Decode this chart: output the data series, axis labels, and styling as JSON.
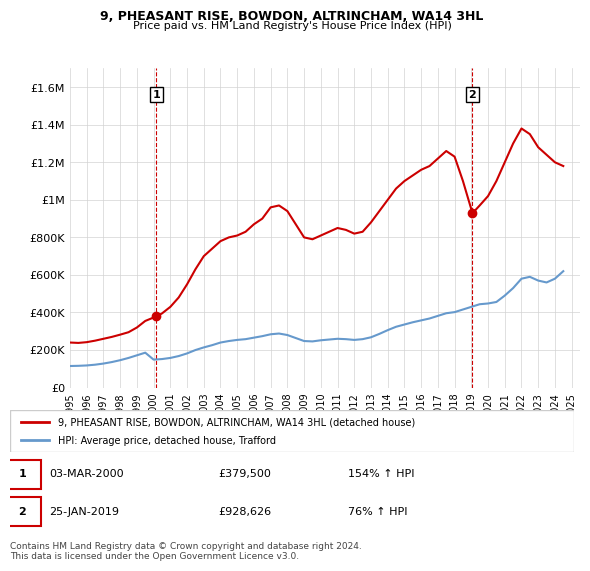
{
  "title": "9, PHEASANT RISE, BOWDON, ALTRINCHAM, WA14 3HL",
  "subtitle": "Price paid vs. HM Land Registry's House Price Index (HPI)",
  "ylabel_ticks": [
    "£0",
    "£200K",
    "£400K",
    "£600K",
    "£800K",
    "£1M",
    "£1.2M",
    "£1.4M",
    "£1.6M"
  ],
  "ytick_values": [
    0,
    200000,
    400000,
    600000,
    800000,
    1000000,
    1200000,
    1400000,
    1600000
  ],
  "ylim": [
    0,
    1700000
  ],
  "xlim_start": 1995.0,
  "xlim_end": 2025.5,
  "house_color": "#cc0000",
  "hpi_color": "#6699cc",
  "marker1_date": 2000.17,
  "marker1_value": 379500,
  "marker2_date": 2019.07,
  "marker2_value": 928626,
  "legend_house": "9, PHEASANT RISE, BOWDON, ALTRINCHAM, WA14 3HL (detached house)",
  "legend_hpi": "HPI: Average price, detached house, Trafford",
  "annotation1_date": "03-MAR-2000",
  "annotation1_price": "£379,500",
  "annotation1_pct": "154% ↑ HPI",
  "annotation2_date": "25-JAN-2019",
  "annotation2_price": "£928,626",
  "annotation2_pct": "76% ↑ HPI",
  "footer": "Contains HM Land Registry data © Crown copyright and database right 2024.\nThis data is licensed under the Open Government Licence v3.0.",
  "house_x": [
    1995.0,
    1995.5,
    1996.0,
    1996.5,
    1997.0,
    1997.5,
    1998.0,
    1998.5,
    1999.0,
    1999.5,
    2000.17,
    2000.5,
    2001.0,
    2001.5,
    2002.0,
    2002.5,
    2003.0,
    2003.5,
    2004.0,
    2004.5,
    2005.0,
    2005.5,
    2006.0,
    2006.5,
    2007.0,
    2007.5,
    2008.0,
    2008.5,
    2009.0,
    2009.5,
    2010.0,
    2010.5,
    2011.0,
    2011.5,
    2012.0,
    2012.5,
    2013.0,
    2013.5,
    2014.0,
    2014.5,
    2015.0,
    2015.5,
    2016.0,
    2016.5,
    2017.0,
    2017.5,
    2018.0,
    2018.5,
    2019.07,
    2019.5,
    2020.0,
    2020.5,
    2021.0,
    2021.5,
    2022.0,
    2022.5,
    2023.0,
    2023.5,
    2024.0,
    2024.5
  ],
  "house_y": [
    240000,
    238000,
    242000,
    250000,
    260000,
    270000,
    282000,
    295000,
    320000,
    355000,
    379500,
    395000,
    430000,
    480000,
    550000,
    630000,
    700000,
    740000,
    780000,
    800000,
    810000,
    830000,
    870000,
    900000,
    960000,
    970000,
    940000,
    870000,
    800000,
    790000,
    810000,
    830000,
    850000,
    840000,
    820000,
    830000,
    880000,
    940000,
    1000000,
    1060000,
    1100000,
    1130000,
    1160000,
    1180000,
    1220000,
    1260000,
    1230000,
    1100000,
    928626,
    970000,
    1020000,
    1100000,
    1200000,
    1300000,
    1380000,
    1350000,
    1280000,
    1240000,
    1200000,
    1180000
  ],
  "hpi_x": [
    1995.0,
    1995.5,
    1996.0,
    1996.5,
    1997.0,
    1997.5,
    1998.0,
    1998.5,
    1999.0,
    1999.5,
    2000.0,
    2000.5,
    2001.0,
    2001.5,
    2002.0,
    2002.5,
    2003.0,
    2003.5,
    2004.0,
    2004.5,
    2005.0,
    2005.5,
    2006.0,
    2006.5,
    2007.0,
    2007.5,
    2008.0,
    2008.5,
    2009.0,
    2009.5,
    2010.0,
    2010.5,
    2011.0,
    2011.5,
    2012.0,
    2012.5,
    2013.0,
    2013.5,
    2014.0,
    2014.5,
    2015.0,
    2015.5,
    2016.0,
    2016.5,
    2017.0,
    2017.5,
    2018.0,
    2018.5,
    2019.0,
    2019.5,
    2020.0,
    2020.5,
    2021.0,
    2021.5,
    2022.0,
    2022.5,
    2023.0,
    2023.5,
    2024.0,
    2024.5
  ],
  "hpi_y": [
    115000,
    116000,
    118000,
    122000,
    128000,
    136000,
    146000,
    158000,
    172000,
    186000,
    149000,
    152000,
    158000,
    168000,
    182000,
    200000,
    214000,
    226000,
    240000,
    248000,
    254000,
    258000,
    266000,
    274000,
    284000,
    288000,
    280000,
    264000,
    248000,
    246000,
    252000,
    256000,
    260000,
    258000,
    254000,
    258000,
    268000,
    286000,
    306000,
    324000,
    336000,
    348000,
    358000,
    368000,
    382000,
    396000,
    402000,
    416000,
    430000,
    444000,
    448000,
    456000,
    490000,
    530000,
    580000,
    590000,
    570000,
    560000,
    580000,
    620000
  ]
}
